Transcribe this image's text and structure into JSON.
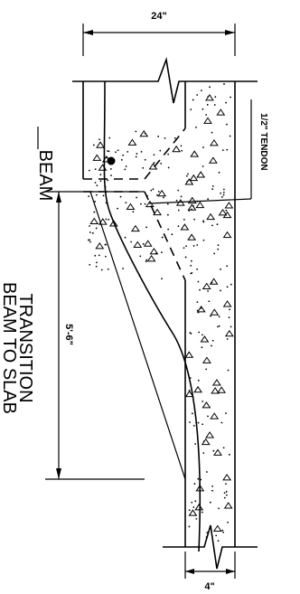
{
  "labels": {
    "top_dimension": "24\"",
    "bottom_dimension": "4\"",
    "side_dimension": "5'-6\"",
    "tendon": "1/2\" TENDON",
    "beam": "BEAM",
    "transition_line1": "TRANSITION",
    "transition_line2": "BEAM TO SLAB"
  },
  "colors": {
    "line": "#000000",
    "background": "#ffffff"
  }
}
